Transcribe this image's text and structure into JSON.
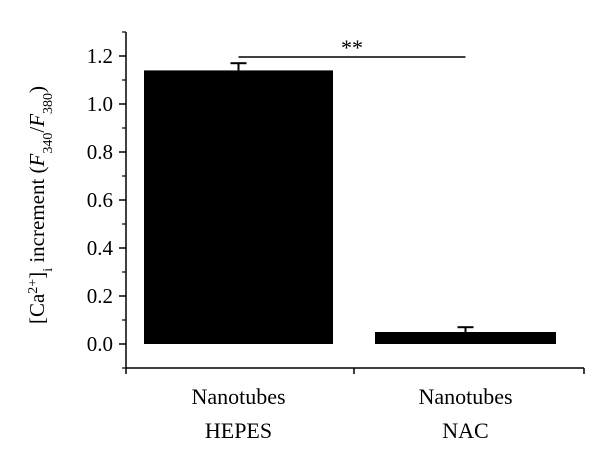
{
  "chart_data": {
    "type": "bar",
    "categories": [
      {
        "line1": "Nanotubes",
        "line2": "HEPES"
      },
      {
        "line1": "Nanotubes",
        "line2": "NAC"
      }
    ],
    "values": [
      1.14,
      0.05
    ],
    "errors": [
      0.03,
      0.02
    ],
    "ylabel": {
      "bracket_open": "[",
      "ion": "Ca",
      "charge": "2+",
      "bracket_close": "]",
      "sub": "i",
      "text": " increment (",
      "f1": "F",
      "f1_sub": "340",
      "slash": "/",
      "f2": "F",
      "f2_sub": "380",
      "close": ")"
    },
    "ylim": [
      -0.1,
      1.3
    ],
    "yticks": [
      "0.0",
      "0.2",
      "0.4",
      "0.6",
      "0.8",
      "1.0",
      "1.2"
    ],
    "significance": {
      "label": "**",
      "between": [
        0,
        1
      ],
      "y": 1.2
    },
    "colors": {
      "bar": "#000000",
      "axis": "#000000"
    }
  }
}
